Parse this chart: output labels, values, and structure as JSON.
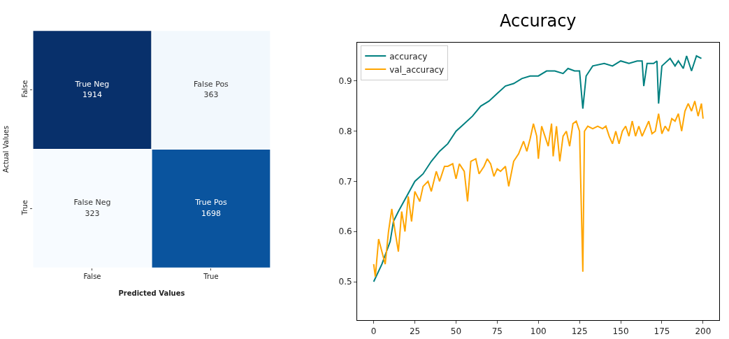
{
  "chart_data": [
    {
      "type": "heatmap",
      "xlabel": "Predicted Values",
      "ylabel": "Actual Values",
      "categories": [
        "False",
        "True"
      ],
      "y_categories": [
        "False",
        "True"
      ],
      "cells": [
        [
          1914,
          363
        ],
        [
          323,
          1698
        ]
      ],
      "data_labels": true,
      "annotations": [
        "True Neg",
        "False Pos",
        "False Neg",
        "True Pos"
      ]
    },
    {
      "type": "line",
      "title": "Accuracy",
      "legend": "top left",
      "xlim": [
        -10,
        210
      ],
      "ylim": [
        0.423,
        0.977
      ],
      "xticks": [
        0,
        25,
        50,
        75,
        100,
        125,
        150,
        175,
        200
      ],
      "yticks": [
        0.5,
        0.6,
        0.7,
        0.8,
        0.9
      ],
      "series": [
        {
          "name": "accuracy",
          "color": "#008080",
          "x": [
            0,
            5,
            10,
            12,
            15,
            20,
            25,
            30,
            35,
            40,
            45,
            50,
            55,
            60,
            65,
            70,
            75,
            80,
            85,
            90,
            95,
            100,
            105,
            110,
            115,
            118,
            122,
            125,
            127,
            129,
            133,
            140,
            145,
            150,
            155,
            160,
            163,
            164,
            166,
            170,
            172,
            173,
            175,
            180,
            183,
            185,
            188,
            190,
            193,
            196,
            199
          ],
          "values": [
            0.5,
            0.535,
            0.58,
            0.62,
            0.64,
            0.67,
            0.7,
            0.715,
            0.74,
            0.76,
            0.775,
            0.8,
            0.815,
            0.83,
            0.85,
            0.86,
            0.875,
            0.89,
            0.895,
            0.905,
            0.91,
            0.91,
            0.92,
            0.92,
            0.915,
            0.925,
            0.92,
            0.92,
            0.845,
            0.91,
            0.93,
            0.935,
            0.93,
            0.94,
            0.935,
            0.94,
            0.94,
            0.89,
            0.935,
            0.935,
            0.94,
            0.855,
            0.93,
            0.945,
            0.93,
            0.94,
            0.925,
            0.95,
            0.92,
            0.95,
            0.945
          ]
        },
        {
          "name": "val_accuracy",
          "color": "#ffa500",
          "x": [
            0,
            1,
            3,
            5,
            7,
            9,
            11,
            13,
            15,
            17,
            19,
            21,
            23,
            25,
            28,
            30,
            33,
            35,
            38,
            40,
            43,
            45,
            48,
            50,
            52,
            55,
            57,
            59,
            62,
            64,
            67,
            69,
            71,
            73,
            75,
            77,
            80,
            82,
            85,
            88,
            91,
            93,
            95,
            97,
            99,
            100,
            102,
            104,
            106,
            108,
            109,
            111,
            113,
            115,
            117,
            119,
            121,
            123,
            125,
            127,
            128,
            130,
            133,
            136,
            139,
            141,
            143,
            145,
            147,
            149,
            151,
            153,
            155,
            157,
            159,
            161,
            163,
            165,
            167,
            169,
            171,
            173,
            175,
            177,
            179,
            181,
            183,
            185,
            187,
            189,
            191,
            193,
            195,
            197,
            199,
            200
          ],
          "values": [
            0.535,
            0.51,
            0.585,
            0.56,
            0.535,
            0.6,
            0.645,
            0.6,
            0.56,
            0.64,
            0.6,
            0.67,
            0.62,
            0.68,
            0.66,
            0.69,
            0.7,
            0.68,
            0.72,
            0.7,
            0.73,
            0.73,
            0.735,
            0.705,
            0.735,
            0.72,
            0.66,
            0.74,
            0.745,
            0.715,
            0.73,
            0.745,
            0.735,
            0.71,
            0.725,
            0.72,
            0.73,
            0.69,
            0.74,
            0.755,
            0.78,
            0.76,
            0.785,
            0.815,
            0.79,
            0.745,
            0.81,
            0.79,
            0.77,
            0.815,
            0.75,
            0.81,
            0.74,
            0.79,
            0.8,
            0.77,
            0.815,
            0.82,
            0.8,
            0.52,
            0.8,
            0.81,
            0.805,
            0.81,
            0.805,
            0.81,
            0.79,
            0.775,
            0.8,
            0.775,
            0.8,
            0.81,
            0.79,
            0.82,
            0.79,
            0.81,
            0.79,
            0.805,
            0.82,
            0.795,
            0.8,
            0.835,
            0.795,
            0.81,
            0.8,
            0.825,
            0.82,
            0.835,
            0.8,
            0.84,
            0.855,
            0.84,
            0.86,
            0.83,
            0.855,
            0.825
          ]
        }
      ]
    }
  ]
}
